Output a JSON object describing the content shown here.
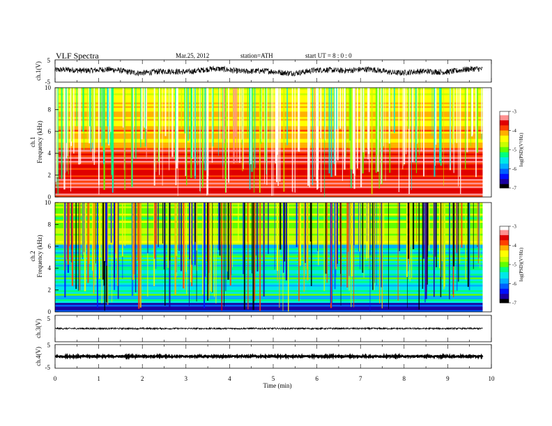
{
  "header": {
    "title": "VLF  Spectra",
    "date": "Mar.25, 2012",
    "station": "station=ATH",
    "start": "start  UT  =   8  : 0  : 0"
  },
  "colors": {
    "colormap": [
      "#000000",
      "#1a00a0",
      "#0010ff",
      "#0060ff",
      "#00b0ff",
      "#00e8e8",
      "#00ff80",
      "#60ff00",
      "#c8ff00",
      "#ffff00",
      "#ffb000",
      "#ff4000",
      "#e00000",
      "#ff9090",
      "#ffffff"
    ],
    "trace": "#000000"
  },
  "chart_data": [
    {
      "type": "line",
      "panel": "ch1-waveform",
      "ylabel": "ch.1(V)",
      "yticks": [
        "5",
        "-5"
      ],
      "ylim": [
        -5,
        5
      ],
      "xlim": [
        0,
        10
      ],
      "data_extent_min": 9.8,
      "note_values": "noisy waveform, envelope approx. -1.5 V to +1.8 V with slow variation",
      "envelope_low": -1.5,
      "envelope_high": 1.8
    },
    {
      "type": "heatmap",
      "panel": "ch1-spectrogram",
      "ylabel": "ch.1\nFrequency  (kHz)",
      "ylabel_line1": "ch.1",
      "ylabel_line2": "Frequency  (kHz)",
      "yticks": [
        "0",
        "2",
        "4",
        "6",
        "8",
        "10"
      ],
      "ylim": [
        0,
        10
      ],
      "xlim": [
        0,
        10
      ],
      "data_extent_min": 9.8,
      "dominant_level": -4,
      "colorbar": {
        "label": "log(PSD)(V²/Hz)",
        "ticks": [
          "-3",
          "-4",
          "-5",
          "-6",
          "-7"
        ],
        "range": [
          -7,
          -3
        ]
      }
    },
    {
      "type": "heatmap",
      "panel": "ch2-spectrogram",
      "ylabel_line1": "ch.2",
      "ylabel_line2": "Frequency  (kHz)",
      "yticks": [
        "0",
        "2",
        "4",
        "6",
        "8",
        "10"
      ],
      "ylim": [
        0,
        10
      ],
      "xlim": [
        0,
        10
      ],
      "data_extent_min": 9.8,
      "dominant_level": -5.5,
      "colorbar": {
        "label": "log(PSD)(V²/Hz)",
        "ticks": [
          "-3",
          "-4",
          "-5",
          "-6",
          "-7"
        ],
        "range": [
          -7,
          -3
        ]
      }
    },
    {
      "type": "line",
      "panel": "ch3-waveform",
      "ylabel": "ch.3(V)",
      "yticks": [
        "5"
      ],
      "ylim": [
        -5,
        5
      ],
      "xlim": [
        0,
        10
      ],
      "level": 0,
      "data_extent_min": 9.8
    },
    {
      "type": "line",
      "panel": "ch4-waveform",
      "ylabel": "ch.4(V)",
      "yticks": [
        "5",
        "-5"
      ],
      "ylim": [
        -5,
        5
      ],
      "xlim": [
        0,
        10
      ],
      "level": 0,
      "data_extent_min": 9.8
    }
  ],
  "xaxis": {
    "label": "Time  (min)",
    "ticks": [
      "0",
      "1",
      "2",
      "3",
      "4",
      "5",
      "6",
      "7",
      "8",
      "9",
      "10"
    ]
  }
}
